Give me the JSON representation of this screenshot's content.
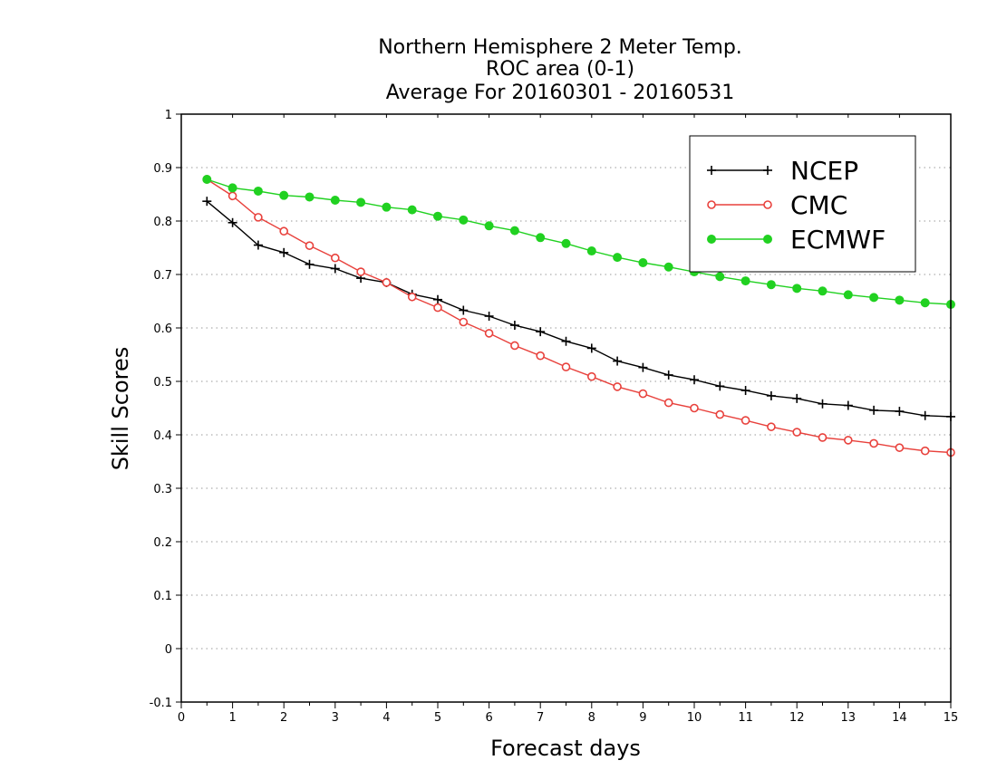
{
  "chart_data": {
    "type": "line",
    "title": [
      "Northern Hemisphere 2 Meter Temp.",
      "ROC area (0-1)",
      "Average For 20160301 - 20160531"
    ],
    "xlabel": "Forecast days",
    "ylabel": "Skill Scores",
    "xlim": [
      0,
      15
    ],
    "ylim": [
      -0.1,
      1
    ],
    "x_ticks": [
      0,
      1,
      2,
      3,
      4,
      5,
      6,
      7,
      8,
      9,
      10,
      11,
      12,
      13,
      14,
      15
    ],
    "y_ticks": [
      -0.1,
      0,
      0.1,
      0.2,
      0.3,
      0.4,
      0.5,
      0.6,
      0.7,
      0.8,
      0.9,
      1
    ],
    "y_tick_labels": [
      "-0.1",
      "0",
      "0.1",
      "0.2",
      "0.3",
      "0.4",
      "0.5",
      "0.6",
      "0.7",
      "0.8",
      "0.9",
      "1"
    ],
    "grid": "horizontal-dotted",
    "legend_position": "top-right",
    "x": [
      0.5,
      1,
      1.5,
      2,
      2.5,
      3,
      3.5,
      4,
      4.5,
      5,
      5.5,
      6,
      6.5,
      7,
      7.5,
      8,
      8.5,
      9,
      9.5,
      10,
      10.5,
      11,
      11.5,
      12,
      12.5,
      13,
      13.5,
      14,
      14.5,
      15
    ],
    "series": [
      {
        "name": "NCEP",
        "color": "#000000",
        "marker": "plus",
        "values": [
          0.837,
          0.797,
          0.755,
          0.741,
          0.719,
          0.711,
          0.693,
          0.685,
          0.663,
          0.653,
          0.633,
          0.622,
          0.605,
          0.593,
          0.575,
          0.562,
          0.538,
          0.526,
          0.512,
          0.503,
          0.491,
          0.483,
          0.473,
          0.468,
          0.458,
          0.455,
          0.446,
          0.444,
          0.436,
          0.434
        ]
      },
      {
        "name": "CMC",
        "color": "#e8413c",
        "marker": "open-circle",
        "values": [
          0.878,
          0.847,
          0.807,
          0.781,
          0.754,
          0.731,
          0.705,
          0.685,
          0.658,
          0.638,
          0.611,
          0.59,
          0.567,
          0.548,
          0.527,
          0.509,
          0.49,
          0.477,
          0.46,
          0.45,
          0.438,
          0.427,
          0.415,
          0.405,
          0.395,
          0.39,
          0.384,
          0.376,
          0.37,
          0.367
        ]
      },
      {
        "name": "ECMWF",
        "color": "#21d121",
        "marker": "filled-circle",
        "values": [
          0.878,
          0.862,
          0.856,
          0.848,
          0.845,
          0.839,
          0.835,
          0.826,
          0.821,
          0.809,
          0.802,
          0.791,
          0.782,
          0.769,
          0.758,
          0.744,
          0.732,
          0.722,
          0.714,
          0.705,
          0.696,
          0.688,
          0.681,
          0.674,
          0.669,
          0.662,
          0.657,
          0.652,
          0.647,
          0.644
        ]
      }
    ]
  }
}
